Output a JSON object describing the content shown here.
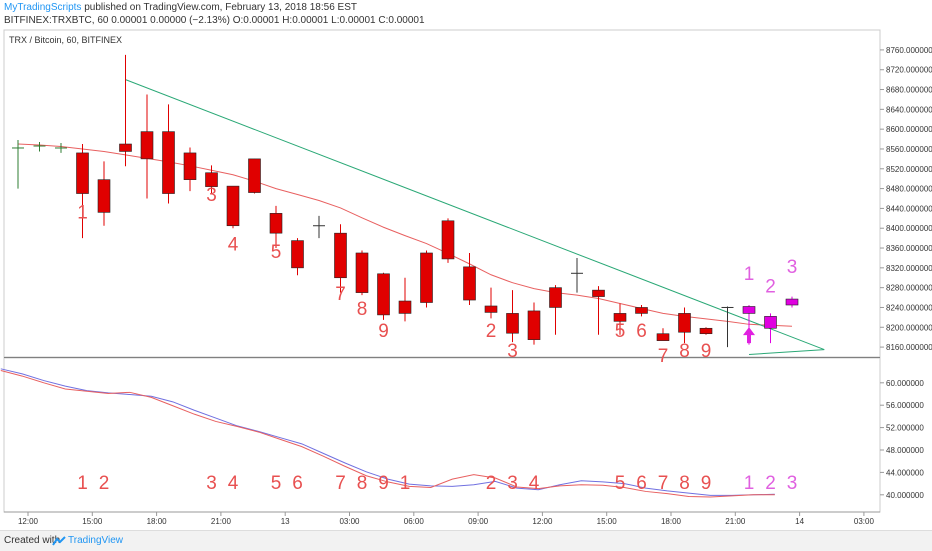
{
  "header": {
    "publisher": "MyTradingScripts",
    "published_text": " published on TradingView.com, February 13, 2018 18:56 EST",
    "ohlc_line": "BITFINEX:TRXBTC, 60  0.00001  0.00000 (−2.13%)  O:0.00001  H:0.00001  L:0.00001  C:0.00001"
  },
  "chart_data": [
    {
      "type": "candlestick",
      "title": "TRX / Bitcoin, 60, BITFINEX",
      "y_ticks": [
        "8760.000000",
        "8720.000000",
        "8680.000000",
        "8640.000000",
        "8600.000000",
        "8560.000000",
        "8520.000000",
        "8480.000000",
        "8440.000000",
        "8400.000000",
        "8360.000000",
        "8320.000000",
        "8280.000000",
        "8240.000000",
        "8200.000000",
        "8160.000000"
      ],
      "ylim": [
        8140,
        8780
      ],
      "x_ticks": [
        "12:00",
        "15:00",
        "18:00",
        "21:00",
        "13",
        "03:00",
        "06:00",
        "09:00",
        "12:00",
        "15:00",
        "18:00",
        "21:00",
        "14",
        "03:00"
      ],
      "candles": [
        {
          "t": 0,
          "o": 8562,
          "h": 8578,
          "l": 8480,
          "c": 8550,
          "color": "#2e7d32"
        },
        {
          "t": 1,
          "o": 8562,
          "h": 8574,
          "l": 8555,
          "c": 8566,
          "color": "#2e7d32"
        },
        {
          "t": 2,
          "o": 8562,
          "h": 8572,
          "l": 8552,
          "c": 8562,
          "color": "#2e7d32"
        },
        {
          "t": 3,
          "o": 8552,
          "h": 8570,
          "l": 8380,
          "c": 8470,
          "color": "#e00000"
        },
        {
          "t": 4,
          "o": 8498,
          "h": 8535,
          "l": 8405,
          "c": 8432,
          "color": "#e00000"
        },
        {
          "t": 5,
          "o": 8570,
          "h": 8750,
          "l": 8525,
          "c": 8555,
          "color": "#e00000"
        },
        {
          "t": 6,
          "o": 8595,
          "h": 8670,
          "l": 8460,
          "c": 8540,
          "color": "#e00000"
        },
        {
          "t": 7,
          "o": 8595,
          "h": 8650,
          "l": 8450,
          "c": 8470,
          "color": "#e00000"
        },
        {
          "t": 8,
          "o": 8552,
          "h": 8563,
          "l": 8475,
          "c": 8498,
          "color": "#e00000"
        },
        {
          "t": 9,
          "o": 8512,
          "h": 8527,
          "l": 8470,
          "c": 8484,
          "color": "#e00000"
        },
        {
          "t": 10,
          "o": 8485,
          "h": 8485,
          "l": 8400,
          "c": 8405,
          "color": "#e00000"
        },
        {
          "t": 11,
          "o": 8540,
          "h": 8540,
          "l": 8470,
          "c": 8472,
          "color": "#e00000"
        },
        {
          "t": 12,
          "o": 8430,
          "h": 8445,
          "l": 8360,
          "c": 8390,
          "color": "#e00000"
        },
        {
          "t": 13,
          "o": 8375,
          "h": 8380,
          "l": 8305,
          "c": 8320,
          "color": "#e00000"
        },
        {
          "t": 14,
          "o": 8405,
          "h": 8425,
          "l": 8380,
          "c": 8405,
          "color": "#333333"
        },
        {
          "t": 15,
          "o": 8390,
          "h": 8408,
          "l": 8270,
          "c": 8300,
          "color": "#e00000"
        },
        {
          "t": 16,
          "o": 8350,
          "h": 8355,
          "l": 8265,
          "c": 8270,
          "color": "#e00000"
        },
        {
          "t": 17,
          "o": 8308,
          "h": 8310,
          "l": 8215,
          "c": 8225,
          "color": "#e00000"
        },
        {
          "t": 18,
          "o": 8253,
          "h": 8300,
          "l": 8212,
          "c": 8228,
          "color": "#e00000"
        },
        {
          "t": 19,
          "o": 8350,
          "h": 8355,
          "l": 8240,
          "c": 8250,
          "color": "#e00000"
        },
        {
          "t": 20,
          "o": 8415,
          "h": 8420,
          "l": 8330,
          "c": 8338,
          "color": "#e00000"
        },
        {
          "t": 21,
          "o": 8322,
          "h": 8350,
          "l": 8245,
          "c": 8255,
          "color": "#e00000"
        },
        {
          "t": 22,
          "o": 8243,
          "h": 8280,
          "l": 8218,
          "c": 8230,
          "color": "#e00000"
        },
        {
          "t": 23,
          "o": 8228,
          "h": 8275,
          "l": 8170,
          "c": 8188,
          "color": "#e00000"
        },
        {
          "t": 24,
          "o": 8233,
          "h": 8250,
          "l": 8165,
          "c": 8175,
          "color": "#e00000"
        },
        {
          "t": 25,
          "o": 8280,
          "h": 8285,
          "l": 8185,
          "c": 8240,
          "color": "#e00000"
        },
        {
          "t": 26,
          "o": 8309,
          "h": 8340,
          "l": 8270,
          "c": 8309,
          "color": "#333333"
        },
        {
          "t": 27,
          "o": 8275,
          "h": 8283,
          "l": 8185,
          "c": 8262,
          "color": "#e00000"
        },
        {
          "t": 28,
          "o": 8228,
          "h": 8248,
          "l": 8185,
          "c": 8212,
          "color": "#e00000"
        },
        {
          "t": 29,
          "o": 8240,
          "h": 8245,
          "l": 8222,
          "c": 8228,
          "color": "#e00000"
        },
        {
          "t": 30,
          "o": 8187,
          "h": 8198,
          "l": 8175,
          "c": 8173,
          "color": "#e00000"
        },
        {
          "t": 31,
          "o": 8228,
          "h": 8240,
          "l": 8168,
          "c": 8190,
          "color": "#e00000"
        },
        {
          "t": 32,
          "o": 8198,
          "h": 8200,
          "l": 8185,
          "c": 8187,
          "color": "#e00000"
        },
        {
          "t": 33,
          "o": 8240,
          "h": 8242,
          "l": 8160,
          "c": 8240,
          "color": "#333333"
        },
        {
          "t": 34,
          "o": 8242,
          "h": 8245,
          "l": 8165,
          "c": 8228,
          "color": "#e000e0"
        },
        {
          "t": 35,
          "o": 8222,
          "h": 8228,
          "l": 8168,
          "c": 8198,
          "color": "#e000e0"
        },
        {
          "t": 36,
          "o": 8257,
          "h": 8262,
          "l": 8240,
          "c": 8245,
          "color": "#e000e0"
        }
      ],
      "moving_average": [
        8570,
        8568,
        8565,
        8560,
        8555,
        8548,
        8541,
        8534,
        8526,
        8517,
        8508,
        8495,
        8480,
        8468,
        8456,
        8441,
        8421,
        8402,
        8385,
        8369,
        8349,
        8328,
        8306,
        8290,
        8278,
        8270,
        8265,
        8258,
        8248,
        8238,
        8228,
        8222,
        8217,
        8212,
        8206,
        8204,
        8202
      ],
      "trendline": {
        "from": {
          "t": 5,
          "p": 8700
        },
        "to": {
          "t": 37.5,
          "p": 8155
        }
      },
      "support_line": {
        "from": {
          "t": 34,
          "p": 8145
        },
        "to": {
          "t": 37.5,
          "p": 8155
        }
      },
      "setup_labels": [
        {
          "t": 3,
          "p": 8420,
          "text": "1",
          "color": "#e85050"
        },
        {
          "t": 9,
          "p": 8455,
          "text": "3",
          "color": "#e85050"
        },
        {
          "t": 10,
          "p": 8355,
          "text": "4",
          "color": "#e85050"
        },
        {
          "t": 12,
          "p": 8340,
          "text": "5",
          "color": "#e85050"
        },
        {
          "t": 15,
          "p": 8255,
          "text": "7",
          "color": "#e85050"
        },
        {
          "t": 16,
          "p": 8225,
          "text": "8",
          "color": "#e85050"
        },
        {
          "t": 17,
          "p": 8180,
          "text": "9",
          "color": "#e85050"
        },
        {
          "t": 22,
          "p": 8180,
          "text": "2",
          "color": "#e85050"
        },
        {
          "t": 23,
          "p": 8140,
          "text": "3",
          "color": "#e85050"
        },
        {
          "t": 28,
          "p": 8180,
          "text": "5",
          "color": "#e85050"
        },
        {
          "t": 29,
          "p": 8180,
          "text": "6",
          "color": "#e85050"
        },
        {
          "t": 30,
          "p": 8130,
          "text": "7",
          "color": "#e85050"
        },
        {
          "t": 31,
          "p": 8140,
          "text": "8",
          "color": "#e85050"
        },
        {
          "t": 32,
          "p": 8140,
          "text": "9",
          "color": "#e85050"
        },
        {
          "t": 34,
          "p": 8295,
          "text": "1",
          "color": "#e060e0"
        },
        {
          "t": 35,
          "p": 8270,
          "text": "2",
          "color": "#e060e0"
        },
        {
          "t": 36,
          "p": 8310,
          "text": "3",
          "color": "#e060e0"
        }
      ],
      "arrows": [
        {
          "t": 34,
          "p": 8172,
          "color": "#e020e0"
        }
      ]
    },
    {
      "type": "line",
      "y_ticks": [
        "60.000000",
        "56.000000",
        "52.000000",
        "48.000000",
        "44.000000",
        "40.000000"
      ],
      "ylim": [
        38,
        63
      ],
      "series": [
        {
          "color": "#7070e0",
          "values": [
            62.5,
            61.6,
            60.4,
            59.4,
            58.6,
            58.2,
            57.9,
            57.6,
            56.6,
            55.1,
            53.7,
            52.3,
            51.3,
            50.2,
            49.1,
            47.4,
            45.7,
            44.1,
            42.8,
            41.9,
            41.6,
            41.5,
            41.8,
            42.4,
            41.2,
            40.9,
            41.8,
            42.5,
            42.3,
            42.0,
            41.2,
            40.7,
            40.3,
            39.9,
            39.9,
            40.0,
            40.1
          ]
        },
        {
          "color": "#e86060",
          "values": [
            62.2,
            61.2,
            60.0,
            58.9,
            58.5,
            58.1,
            58.3,
            57.4,
            55.9,
            54.4,
            53.1,
            52.2,
            51.2,
            49.9,
            48.6,
            46.9,
            45.1,
            43.4,
            42.3,
            41.5,
            41.3,
            42.8,
            43.6,
            43.0,
            41.4,
            41.1,
            41.6,
            41.8,
            41.7,
            41.3,
            40.6,
            40.2,
            39.7,
            39.6,
            39.8,
            40.0,
            40.0
          ]
        }
      ],
      "count_labels": [
        {
          "t": 3,
          "text": "1",
          "color": "#e85050"
        },
        {
          "t": 4,
          "text": "2",
          "color": "#e85050"
        },
        {
          "t": 9,
          "text": "3",
          "color": "#e85050"
        },
        {
          "t": 10,
          "text": "4",
          "color": "#e85050"
        },
        {
          "t": 12,
          "text": "5",
          "color": "#e85050"
        },
        {
          "t": 13,
          "text": "6",
          "color": "#e85050"
        },
        {
          "t": 15,
          "text": "7",
          "color": "#e85050"
        },
        {
          "t": 16,
          "text": "8",
          "color": "#e85050"
        },
        {
          "t": 17,
          "text": "9",
          "color": "#e85050"
        },
        {
          "t": 18,
          "text": "1",
          "color": "#e85050"
        },
        {
          "t": 22,
          "text": "2",
          "color": "#e85050"
        },
        {
          "t": 23,
          "text": "3",
          "color": "#e85050"
        },
        {
          "t": 24,
          "text": "4",
          "color": "#e85050"
        },
        {
          "t": 28,
          "text": "5",
          "color": "#e85050"
        },
        {
          "t": 29,
          "text": "6",
          "color": "#e85050"
        },
        {
          "t": 30,
          "text": "7",
          "color": "#e85050"
        },
        {
          "t": 31,
          "text": "8",
          "color": "#e85050"
        },
        {
          "t": 32,
          "text": "9",
          "color": "#e85050"
        },
        {
          "t": 34,
          "text": "1",
          "color": "#e060e0"
        },
        {
          "t": 35,
          "text": "2",
          "color": "#e060e0"
        },
        {
          "t": 36,
          "text": "3",
          "color": "#e060e0"
        }
      ]
    }
  ],
  "footer": {
    "created_with": "Created with",
    "brand": "TradingView"
  }
}
